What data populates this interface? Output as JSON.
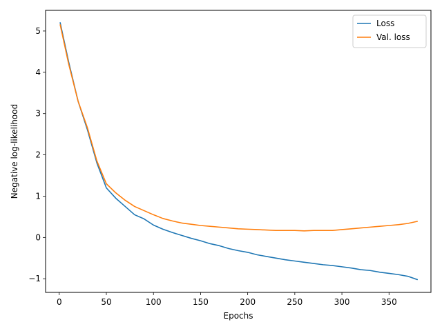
{
  "chart_data": {
    "type": "line",
    "title": "",
    "xlabel": "Epochs",
    "ylabel": "Negative log-likelihood",
    "xlim": [
      -14.5,
      394.5
    ],
    "ylim": [
      -1.33,
      5.5
    ],
    "xticks": [
      0,
      50,
      100,
      150,
      200,
      250,
      300,
      350
    ],
    "xtick_labels": [
      "0",
      "50",
      "100",
      "150",
      "200",
      "250",
      "300",
      "350"
    ],
    "yticks": [
      -1,
      0,
      1,
      2,
      3,
      4,
      5
    ],
    "ytick_labels": [
      "−1",
      "0",
      "1",
      "2",
      "3",
      "4",
      "5"
    ],
    "grid": false,
    "legend_position": "top-right",
    "x": [
      1,
      10,
      20,
      30,
      40,
      50,
      60,
      70,
      80,
      90,
      100,
      110,
      120,
      130,
      140,
      150,
      160,
      170,
      180,
      190,
      200,
      210,
      220,
      230,
      240,
      250,
      260,
      270,
      280,
      290,
      300,
      310,
      320,
      330,
      340,
      350,
      360,
      370,
      380
    ],
    "series": [
      {
        "name": "Loss",
        "color": "#1f77b4",
        "values": [
          5.2,
          4.25,
          3.3,
          2.6,
          1.8,
          1.2,
          0.95,
          0.75,
          0.55,
          0.45,
          0.3,
          0.2,
          0.12,
          0.05,
          -0.02,
          -0.08,
          -0.15,
          -0.2,
          -0.27,
          -0.32,
          -0.36,
          -0.42,
          -0.46,
          -0.5,
          -0.54,
          -0.57,
          -0.6,
          -0.63,
          -0.66,
          -0.68,
          -0.71,
          -0.74,
          -0.78,
          -0.8,
          -0.84,
          -0.87,
          -0.9,
          -0.94,
          -1.02
        ]
      },
      {
        "name": "Val. loss",
        "color": "#ff7f0e",
        "values": [
          5.15,
          4.2,
          3.3,
          2.65,
          1.85,
          1.3,
          1.08,
          0.9,
          0.75,
          0.65,
          0.55,
          0.46,
          0.4,
          0.35,
          0.32,
          0.29,
          0.27,
          0.25,
          0.23,
          0.21,
          0.2,
          0.19,
          0.18,
          0.17,
          0.17,
          0.17,
          0.16,
          0.17,
          0.17,
          0.17,
          0.19,
          0.21,
          0.23,
          0.25,
          0.27,
          0.29,
          0.31,
          0.34,
          0.39
        ]
      }
    ]
  }
}
